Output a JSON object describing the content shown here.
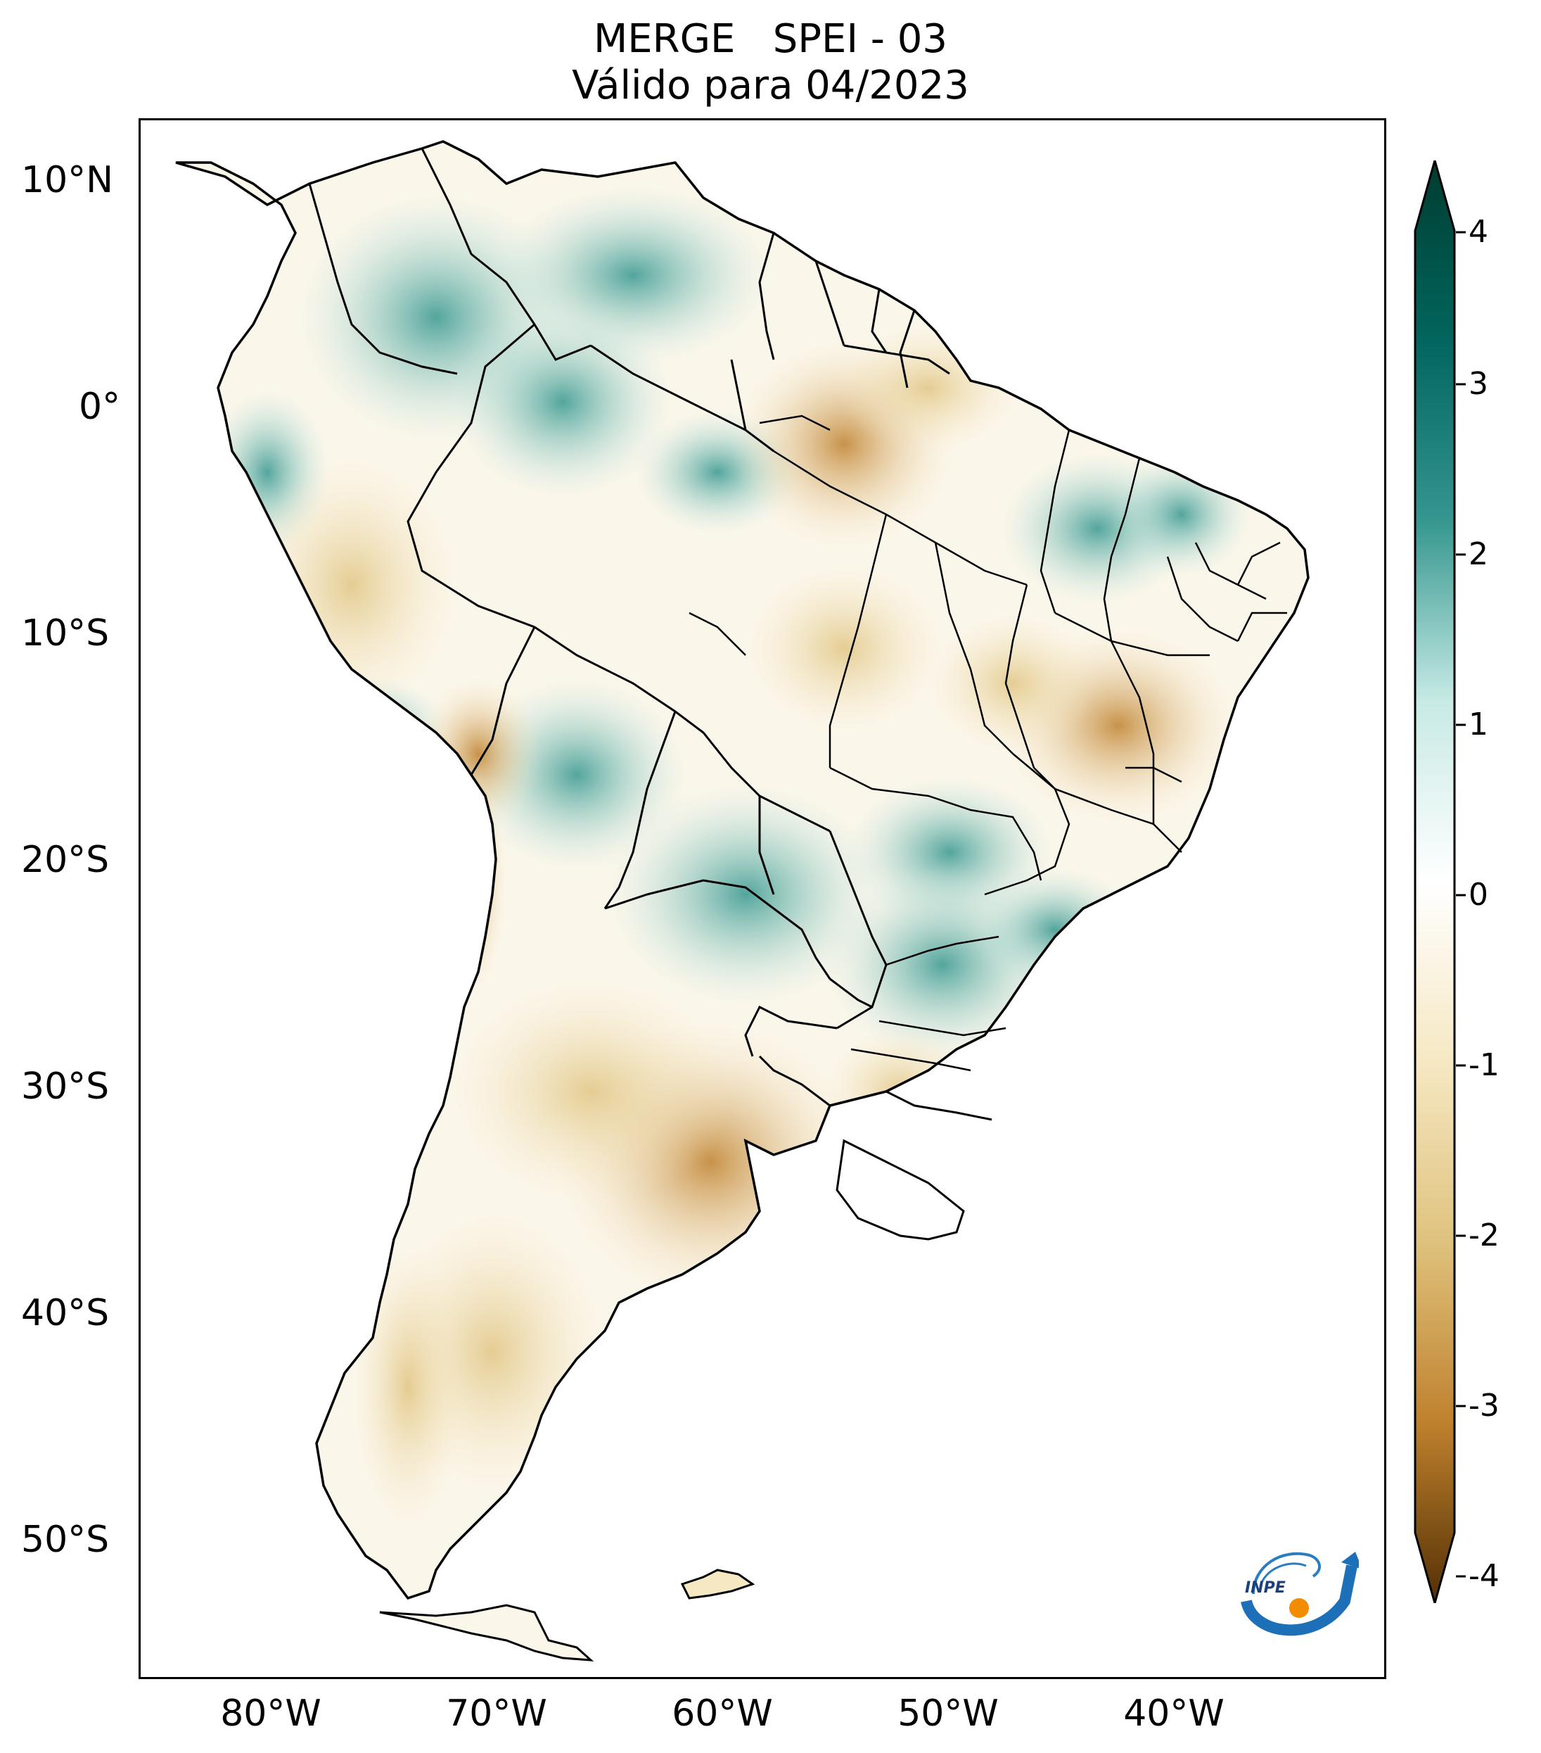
{
  "title": {
    "line1": "MERGE   SPEI - 03",
    "line2": "Válido para 04/2023"
  },
  "lat_ticks": [
    "10°N",
    "0°",
    "10°S",
    "20°S",
    "30°S",
    "40°S",
    "50°S"
  ],
  "lon_ticks": [
    "80°W",
    "70°W",
    "60°W",
    "50°W",
    "40°W"
  ],
  "colorbar": {
    "ticks": [
      "4",
      "3",
      "2",
      "1",
      "0",
      "-1",
      "-2",
      "-3",
      "-4"
    ],
    "colors": {
      "max": "#003c30",
      "p3": "#01665e",
      "p2": "#35978f",
      "p1": "#c7eae5",
      "zero": "#ffffff",
      "m1": "#f6e8c3",
      "m2": "#dfc27d",
      "m3": "#bf812d",
      "min": "#543005"
    }
  },
  "logo": {
    "text": "INPE"
  }
}
